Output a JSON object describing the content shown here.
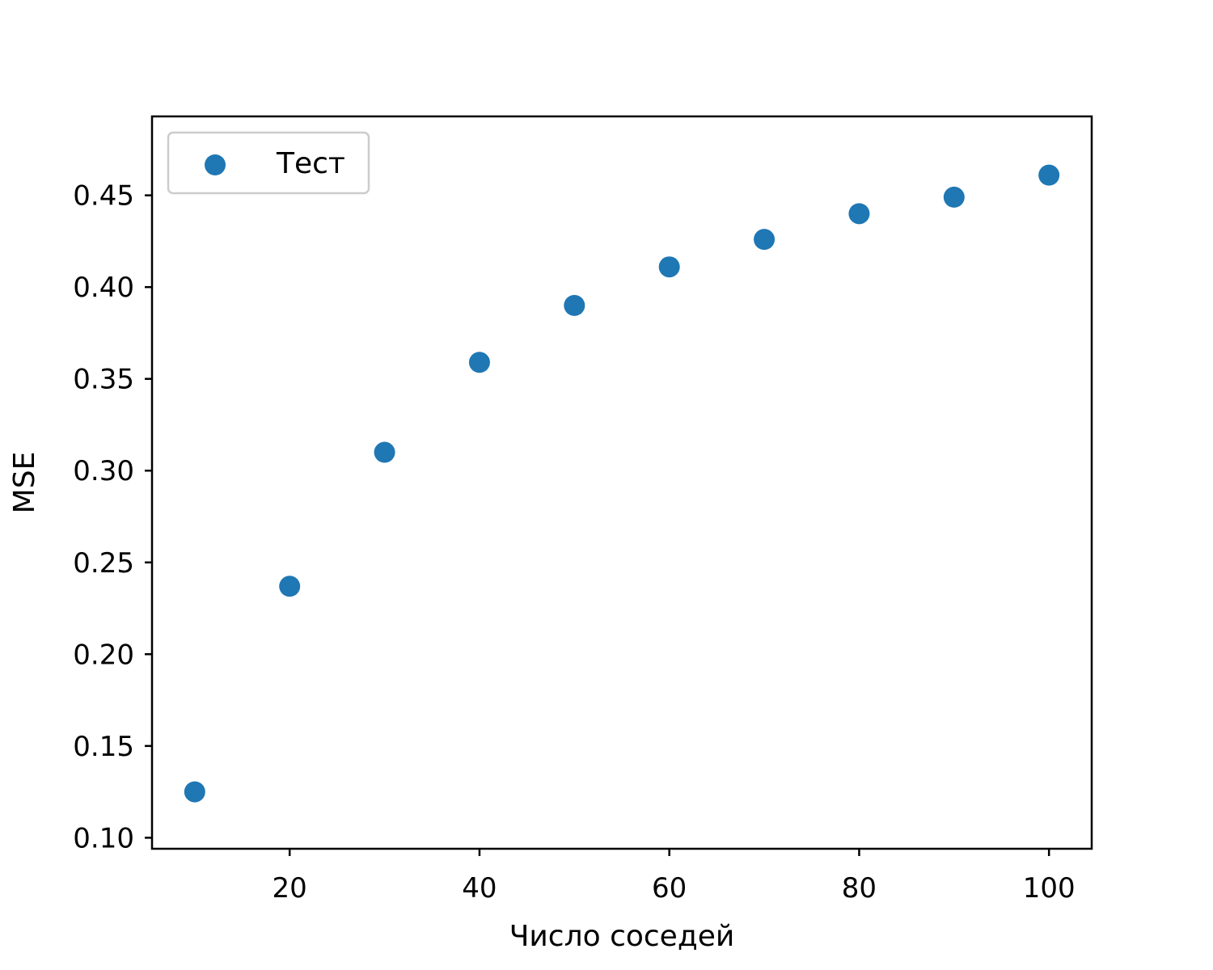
{
  "chart_data": {
    "type": "scatter",
    "title": "",
    "xlabel": "Число соседей",
    "ylabel": "MSE",
    "xlim": [
      5.5,
      104.5
    ],
    "ylim": [
      0.094,
      0.493
    ],
    "xticks": [
      20,
      40,
      60,
      80,
      100
    ],
    "xtick_labels": [
      "20",
      "40",
      "60",
      "80",
      "100"
    ],
    "yticks": [
      0.1,
      0.15,
      0.2,
      0.25,
      0.3,
      0.35,
      0.4,
      0.45
    ],
    "ytick_labels": [
      "0.10",
      "0.15",
      "0.20",
      "0.25",
      "0.30",
      "0.35",
      "0.40",
      "0.45"
    ],
    "grid": false,
    "legend": {
      "position": "top-left",
      "entries": [
        "Тест"
      ]
    },
    "series": [
      {
        "name": "Тест",
        "color": "#1f77b4",
        "x": [
          10,
          20,
          30,
          40,
          50,
          60,
          70,
          80,
          90,
          100
        ],
        "y": [
          0.125,
          0.237,
          0.31,
          0.359,
          0.39,
          0.411,
          0.426,
          0.44,
          0.449,
          0.461
        ]
      }
    ]
  }
}
